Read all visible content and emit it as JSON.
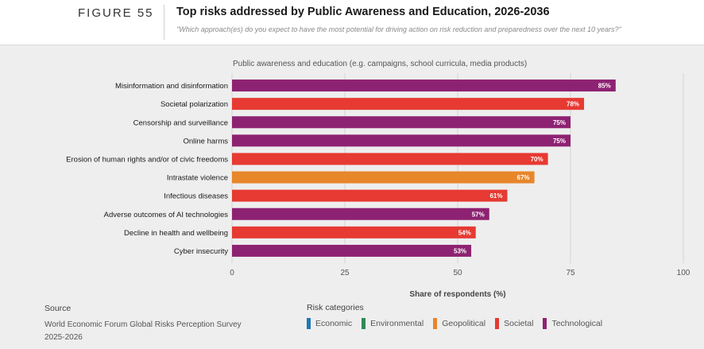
{
  "header": {
    "figure_label": "FIGURE 55",
    "title": "Top risks addressed by Public Awareness and Education, 2026-2036",
    "subtitle": "\"Which approach(es) do you expect to have the most potential for driving action on risk reduction and preparedness over the next 10 years?\""
  },
  "source": {
    "heading": "Source",
    "line1": "World Economic Forum Global Risks Perception Survey",
    "line2": "2025-2026"
  },
  "legend": {
    "heading": "Risk categories",
    "items": [
      {
        "label": "Economic",
        "color": "#1f77b4"
      },
      {
        "label": "Environmental",
        "color": "#2e8b57"
      },
      {
        "label": "Geopolitical",
        "color": "#e8862a"
      },
      {
        "label": "Societal",
        "color": "#e63a32"
      },
      {
        "label": "Technological",
        "color": "#8e2272"
      }
    ]
  },
  "chart_data": {
    "type": "bar",
    "orientation": "horizontal",
    "panel_title": "Public awareness and education (e.g. campaigns, school curricula, media products)",
    "xlabel": "Share of respondents (%)",
    "xlim": [
      0,
      100
    ],
    "xticks": [
      0,
      25,
      50,
      75,
      100
    ],
    "grid": true,
    "categories": [
      "Misinformation and disinformation",
      "Societal polarization",
      "Censorship and surveillance",
      "Online harms",
      "Erosion of human rights and/or of civic freedoms",
      "Intrastate violence",
      "Infectious diseases",
      "Adverse outcomes of AI technologies",
      "Decline in health and wellbeing",
      "Cyber insecurity"
    ],
    "values": [
      85,
      78,
      75,
      75,
      70,
      67,
      61,
      57,
      54,
      53
    ],
    "value_labels": [
      "85%",
      "78%",
      "75%",
      "75%",
      "70%",
      "67%",
      "61%",
      "57%",
      "54%",
      "53%"
    ],
    "risk_category": [
      "Technological",
      "Societal",
      "Technological",
      "Technological",
      "Societal",
      "Geopolitical",
      "Societal",
      "Technological",
      "Societal",
      "Technological"
    ]
  }
}
